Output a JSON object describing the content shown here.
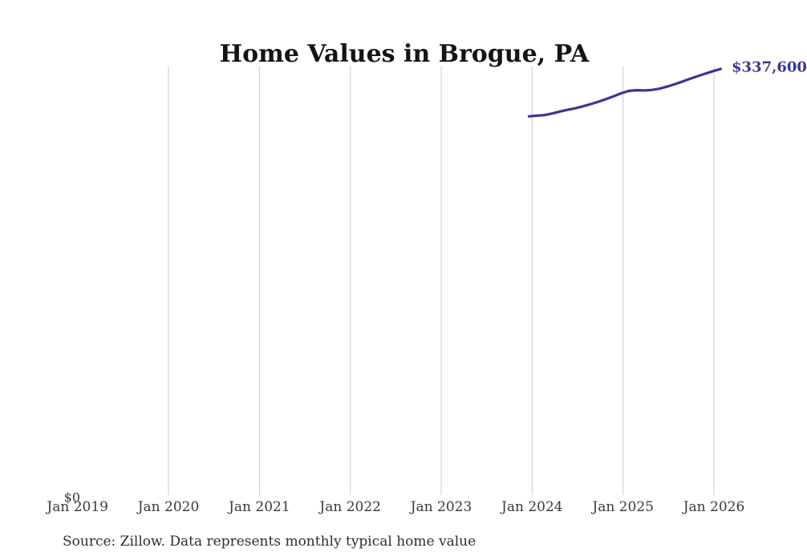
{
  "title": "Home Values in Brogue, PA",
  "source_note": "Source: Zillow. Data represents monthly typical home value",
  "y_axis": {
    "zero_label": "$0"
  },
  "x_axis": {
    "tick_labels": [
      "Jan 2019",
      "Jan 2020",
      "Jan 2021",
      "Jan 2022",
      "Jan 2023",
      "Jan 2024",
      "Jan 2025",
      "Jan 2026"
    ]
  },
  "end_annotation": {
    "label": "$337,600"
  },
  "colors": {
    "line": "#3a3694",
    "annotation": "#3a3694",
    "grid": "#cbcbcb",
    "tick_text": "#3a3a3a",
    "title_text": "#141414",
    "source_text": "#2e2e2e"
  },
  "chart_data": {
    "type": "line",
    "title": "Home Values in Brogue, PA",
    "series_name": "Monthly typical home value",
    "x": [
      "Dec 2023",
      "Jan 2024",
      "Feb 2024",
      "Mar 2024",
      "Apr 2024",
      "May 2024",
      "Jun 2024",
      "Jul 2024",
      "Aug 2024",
      "Sep 2024",
      "Oct 2024",
      "Nov 2024",
      "Dec 2024",
      "Jan 2025",
      "Feb 2025",
      "Mar 2025",
      "Apr 2025",
      "May 2025",
      "Jun 2025",
      "Jul 2025",
      "Aug 2025",
      "Sep 2025",
      "Oct 2025",
      "Nov 2025",
      "Dec 2025",
      "Jan 2026"
    ],
    "values": [
      300200,
      300700,
      301100,
      302400,
      303900,
      305300,
      306500,
      308000,
      309700,
      311600,
      313700,
      315900,
      318300,
      320200,
      320800,
      320600,
      321000,
      322000,
      323600,
      325500,
      327600,
      329800,
      331900,
      333900,
      335800,
      337600
    ],
    "final_value_label": "$337,600",
    "xlabel": "",
    "ylabel": "",
    "ylim": [
      0,
      340000
    ],
    "x_tick_range": [
      "Jan 2019",
      "Jan 2026"
    ],
    "grid": "vertical-only",
    "legend": "none"
  }
}
